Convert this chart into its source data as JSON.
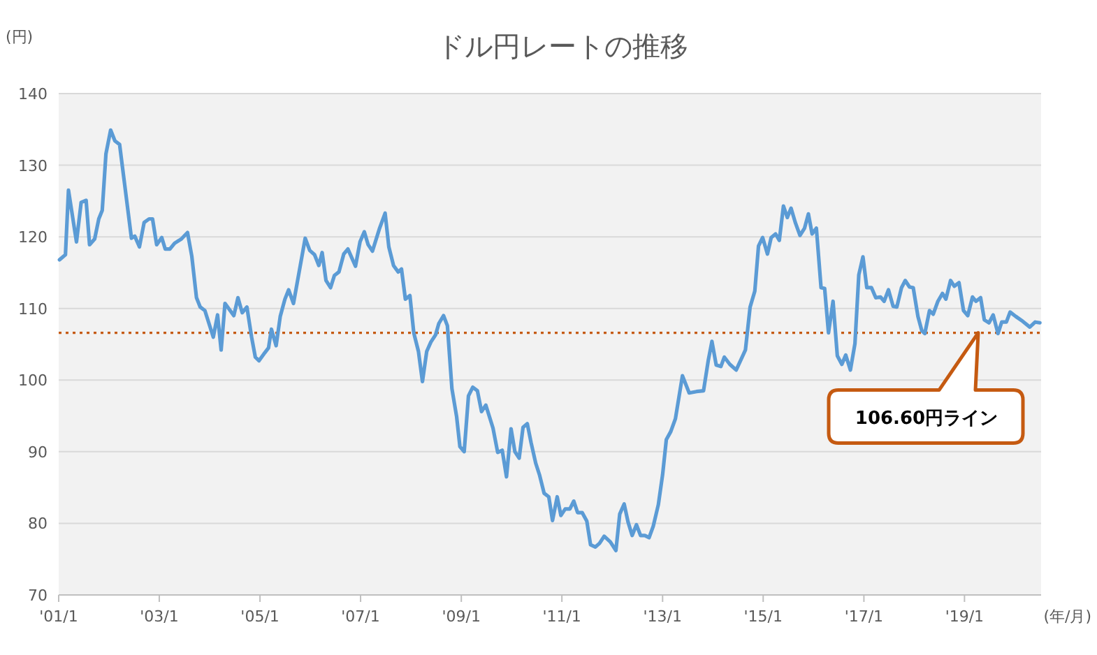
{
  "chart_data": {
    "type": "line",
    "title": "ドル円レートの推移",
    "xlabel": "(年/月)",
    "ylabel": "(円)",
    "x": [
      "2001-01-07",
      "2001-02-19",
      "2001-03-13",
      "2001-05-10",
      "2001-06-13",
      "2001-07-19",
      "2001-08-13",
      "2001-09-19",
      "2001-10-19",
      "2001-11-13",
      "2001-12-10",
      "2002-01-13",
      "2002-02-13",
      "2002-03-19",
      "2002-06-13",
      "2002-07-07",
      "2002-08-10",
      "2002-09-13",
      "2002-10-19",
      "2002-11-13",
      "2002-12-13",
      "2003-01-19",
      "2003-02-13",
      "2003-03-19",
      "2003-04-22",
      "2003-06-10",
      "2003-07-25",
      "2003-08-25",
      "2003-09-28",
      "2003-10-25",
      "2003-11-28",
      "2004-01-28",
      "2004-02-28",
      "2004-03-25",
      "2004-04-22",
      "2004-06-25",
      "2004-07-25",
      "2004-08-25",
      "2004-09-28",
      "2004-11-01",
      "2004-11-28",
      "2004-12-25",
      "2005-02-04",
      "2005-03-04",
      "2005-03-25",
      "2005-04-28",
      "2005-05-28",
      "2005-07-01",
      "2005-07-28",
      "2005-09-01",
      "2005-11-25",
      "2005-12-28",
      "2006-02-01",
      "2006-03-04",
      "2006-03-28",
      "2006-04-25",
      "2006-05-28",
      "2006-06-25",
      "2006-07-28",
      "2006-09-01",
      "2006-10-01",
      "2006-11-25",
      "2006-12-28",
      "2007-01-28",
      "2007-02-25",
      "2007-03-28",
      "2007-05-19",
      "2007-06-28",
      "2007-07-25",
      "2007-08-28",
      "2007-10-01",
      "2007-10-25",
      "2007-11-22",
      "2007-12-25",
      "2008-01-22",
      "2008-02-25",
      "2008-03-25",
      "2008-04-25",
      "2008-05-25",
      "2008-06-28",
      "2008-07-22",
      "2008-08-25",
      "2008-09-22",
      "2008-10-25",
      "2008-11-28",
      "2008-12-22",
      "2009-01-22",
      "2009-02-22",
      "2009-03-25",
      "2009-04-28",
      "2009-05-28",
      "2009-06-28",
      "2009-08-19",
      "2009-09-22",
      "2009-10-25",
      "2009-11-25",
      "2009-12-28",
      "2010-01-25",
      "2010-02-25",
      "2010-03-25",
      "2010-04-25",
      "2010-05-22",
      "2010-06-25",
      "2010-07-22",
      "2010-08-25",
      "2010-09-28",
      "2010-10-25",
      "2010-11-28",
      "2010-12-25",
      "2011-01-25",
      "2011-02-28",
      "2011-03-28",
      "2011-04-25",
      "2011-05-28",
      "2011-07-01",
      "2011-07-28",
      "2011-09-01",
      "2011-10-01",
      "2011-11-04",
      "2011-12-19",
      "2012-01-28",
      "2012-02-25",
      "2012-03-28",
      "2012-04-25",
      "2012-05-25",
      "2012-06-25",
      "2012-07-25",
      "2012-08-25",
      "2012-09-25",
      "2012-10-25",
      "2012-12-01",
      "2013-01-01",
      "2013-01-28",
      "2013-03-01",
      "2013-04-04",
      "2013-05-25",
      "2013-07-13",
      "2013-09-04",
      "2013-10-25",
      "2013-11-28",
      "2013-12-25",
      "2014-01-25",
      "2014-02-28",
      "2014-03-25",
      "2014-05-04",
      "2014-06-19",
      "2014-08-25",
      "2014-09-28",
      "2014-11-01",
      "2014-11-28",
      "2014-12-28",
      "2015-02-01",
      "2015-02-28",
      "2015-04-01",
      "2015-04-28",
      "2015-05-28",
      "2015-06-25",
      "2015-07-22",
      "2015-08-22",
      "2015-09-25",
      "2015-10-28",
      "2015-11-25",
      "2015-12-22",
      "2016-01-22",
      "2016-02-25",
      "2016-03-22",
      "2016-04-19",
      "2016-05-22",
      "2016-06-22",
      "2016-07-25",
      "2016-08-22",
      "2016-09-25",
      "2016-10-28",
      "2016-11-25",
      "2016-12-25",
      "2017-01-22",
      "2017-02-25",
      "2017-03-28",
      "2017-05-01",
      "2017-05-28",
      "2017-06-28",
      "2017-08-01",
      "2017-08-28",
      "2017-10-01",
      "2017-10-28",
      "2017-11-28",
      "2017-12-25",
      "2018-01-28",
      "2018-02-25",
      "2018-03-19",
      "2018-04-22",
      "2018-05-19",
      "2018-06-22",
      "2018-07-25",
      "2018-08-19",
      "2018-09-22",
      "2018-10-19",
      "2018-11-22",
      "2018-12-25",
      "2019-01-25",
      "2019-02-28",
      "2019-03-25",
      "2019-04-28",
      "2019-05-25",
      "2019-06-28",
      "2019-07-28",
      "2019-09-01",
      "2019-09-28",
      "2019-11-01",
      "2019-11-28",
      "2020-01-07",
      "2020-02-28",
      "2020-04-19",
      "2020-05-28",
      "2020-07-01"
    ],
    "series": [
      {
        "color": "#5b9bd5",
        "values": [
          116.8,
          117.5,
          126.5,
          119.3,
          124.8,
          125.1,
          118.9,
          119.7,
          122.5,
          123.7,
          131.6,
          134.9,
          133.4,
          132.9,
          119.8,
          120.1,
          118.6,
          122,
          122.5,
          122.5,
          118.9,
          119.9,
          118.3,
          118.3,
          119.1,
          119.7,
          120.6,
          117.3,
          111.5,
          110.2,
          109.7,
          106,
          109.1,
          104.2,
          110.7,
          109,
          111.5,
          109.4,
          110.2,
          106,
          103.2,
          102.7,
          103.8,
          104.5,
          107.1,
          104.8,
          108.9,
          111.3,
          112.6,
          110.7,
          119.8,
          118.1,
          117.5,
          116,
          117.8,
          113.9,
          112.9,
          114.6,
          115.1,
          117.6,
          118.3,
          115.9,
          119.3,
          120.7,
          118.9,
          118,
          121.2,
          123.3,
          118.6,
          116,
          115.1,
          115.5,
          111.3,
          111.8,
          106.6,
          104,
          99.8,
          104,
          105.3,
          106.3,
          107.9,
          109,
          107.6,
          98.8,
          94.9,
          90.7,
          90,
          97.8,
          99,
          98.5,
          95.6,
          96.5,
          93.3,
          89.9,
          90.2,
          86.5,
          93.2,
          90,
          89.1,
          93.4,
          93.9,
          91.3,
          88.4,
          86.8,
          84.2,
          83.7,
          80.4,
          83.7,
          81.1,
          82,
          82,
          83.1,
          81.5,
          81.5,
          80.3,
          77,
          76.7,
          77.2,
          78.2,
          77.4,
          76.2,
          81.3,
          82.7,
          80.2,
          78.3,
          79.8,
          78.3,
          78.3,
          78,
          79.6,
          82.6,
          86.8,
          91.7,
          92.8,
          94.6,
          100.6,
          98.2,
          98.4,
          98.5,
          102.7,
          105.4,
          102.1,
          101.9,
          103.2,
          102.2,
          101.4,
          104.2,
          110.2,
          112.4,
          118.7,
          119.9,
          117.6,
          119.9,
          120.4,
          119.5,
          124.3,
          122.7,
          124,
          122,
          120.2,
          121.2,
          123.2,
          120.4,
          121.2,
          112.9,
          112.8,
          106.6,
          111,
          103.4,
          102.2,
          103.5,
          101.4,
          105.1,
          114.7,
          117.2,
          112.9,
          112.9,
          111.5,
          111.6,
          111,
          112.6,
          110.3,
          110.2,
          112.9,
          113.9,
          113,
          112.9,
          108.9,
          106.9,
          106.5,
          109.7,
          109.2,
          111,
          112.1,
          111.3,
          113.9,
          113.1,
          113.6,
          109.7,
          109,
          111.6,
          111,
          111.5,
          108.4,
          108,
          109.1,
          106.5,
          108.1,
          108.1,
          109.5,
          108.9,
          108.2,
          107.4,
          108.1,
          108
        ]
      }
    ],
    "xlim": [
      "2001-01-01",
      "2020-07-10"
    ],
    "xticks": [
      {
        "value": "2001-01",
        "label": "'01/1"
      },
      {
        "value": "2003-01",
        "label": "'03/1"
      },
      {
        "value": "2005-01",
        "label": "'05/1"
      },
      {
        "value": "2007-01",
        "label": "'07/1"
      },
      {
        "value": "2009-01",
        "label": "'09/1"
      },
      {
        "value": "2011-01",
        "label": "'11/1"
      },
      {
        "value": "2013-01",
        "label": "'13/1"
      },
      {
        "value": "2015-01",
        "label": "'15/1"
      },
      {
        "value": "2017-01",
        "label": "'17/1"
      },
      {
        "value": "2019-01",
        "label": "'19/1"
      }
    ],
    "ylim": [
      70,
      140
    ],
    "yticks": [
      70,
      80,
      90,
      100,
      110,
      120,
      130,
      140
    ],
    "grid": "y",
    "line_style": "solid",
    "marker": "none",
    "ref_lines": [
      {
        "axis": "y",
        "value": 106.6,
        "color": "#c55a11",
        "line_style": "dotted"
      }
    ],
    "annotations": [
      "106.60円ライン"
    ]
  }
}
